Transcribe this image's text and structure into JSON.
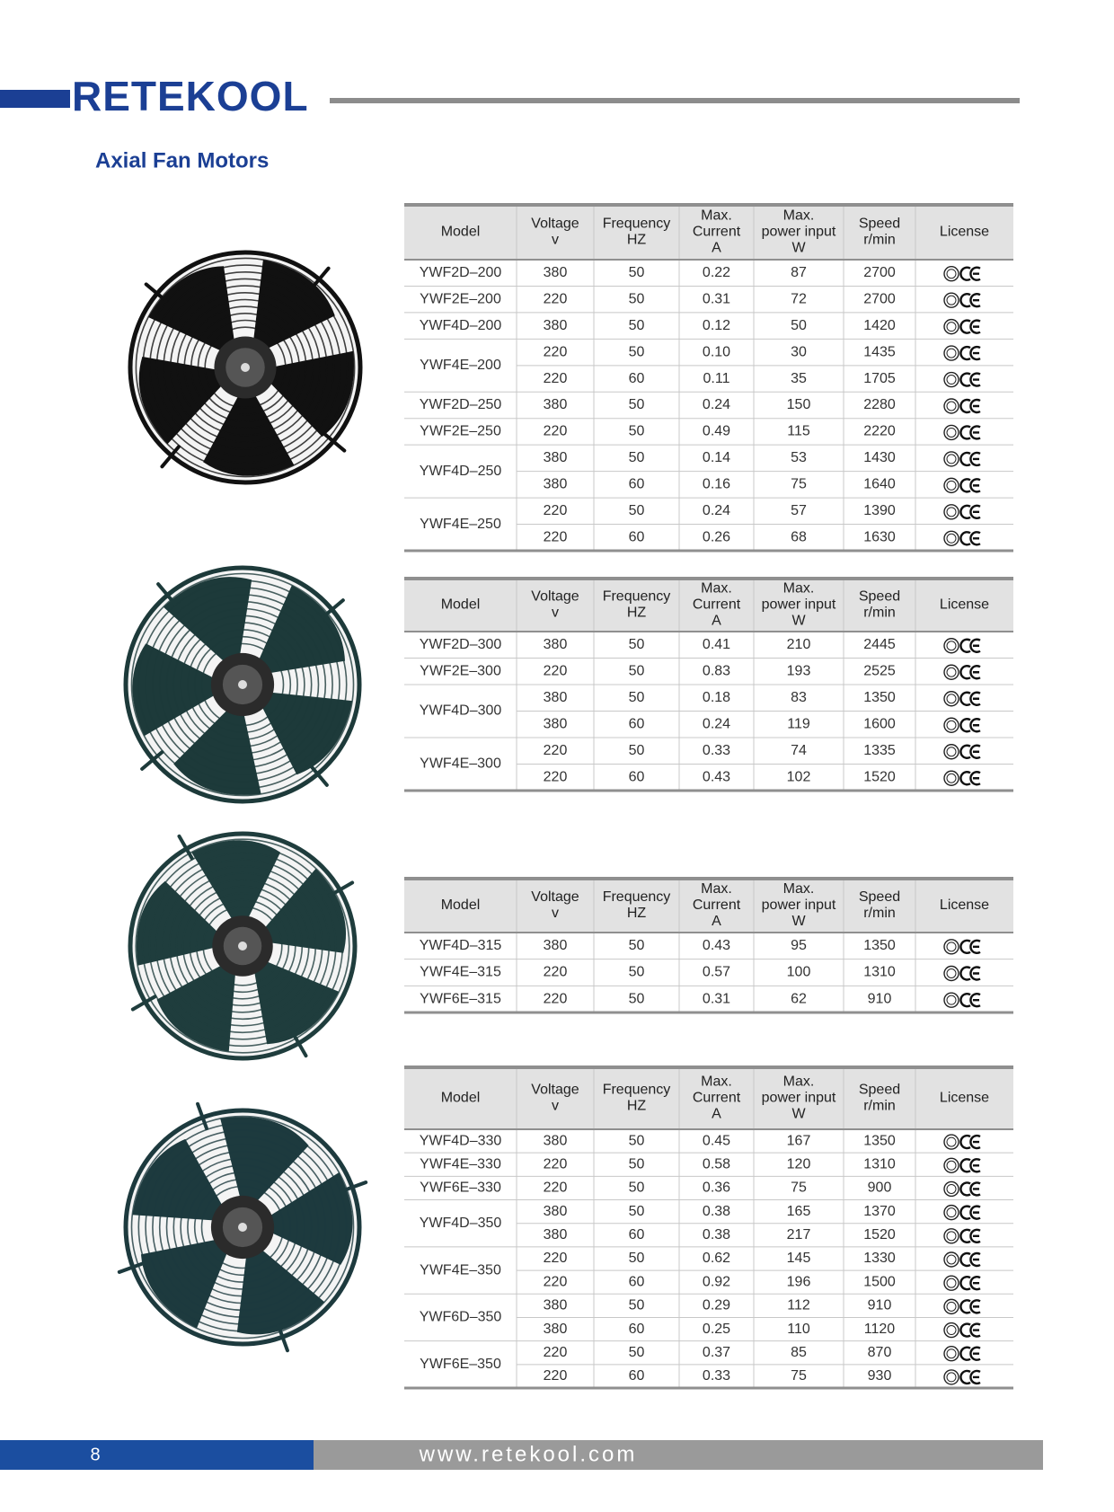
{
  "header": {
    "brand": "RETEKOOL",
    "title": "Axial Fan Motors"
  },
  "tables": [
    {
      "columns": [
        [
          "Model"
        ],
        [
          "Voltage",
          "v"
        ],
        [
          "Frequency",
          "HZ"
        ],
        [
          "Max.",
          "Current",
          "A"
        ],
        [
          "Max.",
          "power input",
          "W"
        ],
        [
          "Speed",
          "r/min"
        ],
        [
          "License"
        ]
      ],
      "groups": [
        {
          "model": "YWF2D–200",
          "rows": [
            [
              "380",
              "50",
              "0.22",
              "87",
              "2700"
            ]
          ]
        },
        {
          "model": "YWF2E–200",
          "rows": [
            [
              "220",
              "50",
              "0.31",
              "72",
              "2700"
            ]
          ]
        },
        {
          "model": "YWF4D–200",
          "rows": [
            [
              "380",
              "50",
              "0.12",
              "50",
              "1420"
            ]
          ]
        },
        {
          "model": "YWF4E–200",
          "rows": [
            [
              "220",
              "50",
              "0.10",
              "30",
              "1435"
            ],
            [
              "220",
              "60",
              "0.11",
              "35",
              "1705"
            ]
          ]
        },
        {
          "model": "YWF2D–250",
          "rows": [
            [
              "380",
              "50",
              "0.24",
              "150",
              "2280"
            ]
          ]
        },
        {
          "model": "YWF2E–250",
          "rows": [
            [
              "220",
              "50",
              "0.49",
              "115",
              "2220"
            ]
          ]
        },
        {
          "model": "YWF4D–250",
          "rows": [
            [
              "380",
              "50",
              "0.14",
              "53",
              "1430"
            ],
            [
              "380",
              "60",
              "0.16",
              "75",
              "1640"
            ]
          ]
        },
        {
          "model": "YWF4E–250",
          "rows": [
            [
              "220",
              "50",
              "0.24",
              "57",
              "1390"
            ],
            [
              "220",
              "60",
              "0.26",
              "68",
              "1630"
            ]
          ]
        }
      ]
    },
    {
      "columns": [
        [
          "Model"
        ],
        [
          "Voltage",
          "v"
        ],
        [
          "Frequency",
          "HZ"
        ],
        [
          "Max.",
          "Current",
          "A"
        ],
        [
          "Max.",
          "power input",
          "W"
        ],
        [
          "Speed",
          "r/min"
        ],
        [
          "License"
        ]
      ],
      "groups": [
        {
          "model": "YWF2D–300",
          "rows": [
            [
              "380",
              "50",
              "0.41",
              "210",
              "2445"
            ]
          ]
        },
        {
          "model": "YWF2E–300",
          "rows": [
            [
              "220",
              "50",
              "0.83",
              "193",
              "2525"
            ]
          ]
        },
        {
          "model": "YWF4D–300",
          "rows": [
            [
              "380",
              "50",
              "0.18",
              "83",
              "1350"
            ],
            [
              "380",
              "60",
              "0.24",
              "119",
              "1600"
            ]
          ]
        },
        {
          "model": "YWF4E–300",
          "rows": [
            [
              "220",
              "50",
              "0.33",
              "74",
              "1335"
            ],
            [
              "220",
              "60",
              "0.43",
              "102",
              "1520"
            ]
          ]
        }
      ]
    },
    {
      "columns": [
        [
          "Model"
        ],
        [
          "Voltage",
          "v"
        ],
        [
          "Frequency",
          "HZ"
        ],
        [
          "Max.",
          "Current",
          "A"
        ],
        [
          "Max.",
          "power input",
          "W"
        ],
        [
          "Speed",
          "r/min"
        ],
        [
          "License"
        ]
      ],
      "groups": [
        {
          "model": "YWF4D–315",
          "rows": [
            [
              "380",
              "50",
              "0.43",
              "95",
              "1350"
            ]
          ]
        },
        {
          "model": "YWF4E–315",
          "rows": [
            [
              "220",
              "50",
              "0.57",
              "100",
              "1310"
            ]
          ]
        },
        {
          "model": "YWF6E–315",
          "rows": [
            [
              "220",
              "50",
              "0.31",
              "62",
              "910"
            ]
          ]
        }
      ]
    },
    {
      "columns": [
        [
          "Model"
        ],
        [
          "Voltage",
          "v"
        ],
        [
          "Frequency",
          "HZ"
        ],
        [
          "Max.",
          "Current",
          "A"
        ],
        [
          "Max.",
          "power input",
          "W"
        ],
        [
          "Speed",
          "r/min"
        ],
        [
          "License"
        ]
      ],
      "groups": [
        {
          "model": "YWF4D–330",
          "rows": [
            [
              "380",
              "50",
              "0.45",
              "167",
              "1350"
            ]
          ]
        },
        {
          "model": "YWF4E–330",
          "rows": [
            [
              "220",
              "50",
              "0.58",
              "120",
              "1310"
            ]
          ]
        },
        {
          "model": "YWF6E–330",
          "rows": [
            [
              "220",
              "50",
              "0.36",
              "75",
              "900"
            ]
          ]
        },
        {
          "model": "YWF4D–350",
          "rows": [
            [
              "380",
              "50",
              "0.38",
              "165",
              "1370"
            ],
            [
              "380",
              "60",
              "0.38",
              "217",
              "1520"
            ]
          ]
        },
        {
          "model": "YWF4E–350",
          "rows": [
            [
              "220",
              "50",
              "0.62",
              "145",
              "1330"
            ],
            [
              "220",
              "60",
              "0.92",
              "196",
              "1500"
            ]
          ]
        },
        {
          "model": "YWF6D–350",
          "rows": [
            [
              "380",
              "50",
              "0.29",
              "112",
              "910"
            ],
            [
              "380",
              "60",
              "0.25",
              "110",
              "1120"
            ]
          ]
        },
        {
          "model": "YWF6E–350",
          "rows": [
            [
              "220",
              "50",
              "0.37",
              "85",
              "870"
            ],
            [
              "220",
              "60",
              "0.33",
              "75",
              "930"
            ]
          ]
        }
      ]
    }
  ],
  "footer": {
    "page": "8",
    "url": "www.retekool.com"
  }
}
